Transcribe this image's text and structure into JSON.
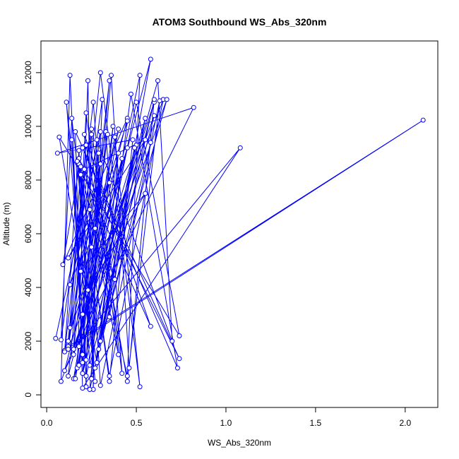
{
  "chart_data": {
    "type": "line-points",
    "title": "ATOM3 Southbound WS_Abs_320nm",
    "x_label": "WS_Abs_320nm",
    "y_label": "Altitude (m)",
    "color": "#0000ff",
    "x": [
      0.05,
      0.3,
      0.15,
      0.6,
      0.2,
      0.45,
      0.1,
      2.1,
      0.12,
      0.25,
      0.22,
      0.18,
      0.35,
      0.65,
      0.08,
      0.13,
      0.2,
      0.4,
      0.3,
      0.55,
      0.17,
      0.23,
      0.26,
      0.28,
      0.7,
      0.62,
      0.15,
      0.38,
      0.52,
      0.3,
      0.12,
      0.58,
      0.27,
      0.47,
      0.73,
      0.2,
      0.09,
      0.45,
      0.1,
      0.82,
      0.06,
      0.48,
      0.35,
      0.18,
      0.74,
      0.16,
      0.2,
      1.08,
      0.15,
      0.22,
      0.4,
      0.19,
      0.13,
      0.33,
      0.42,
      0.25,
      0.08,
      0.14,
      0.29,
      0.6,
      0.46,
      0.36,
      0.22,
      0.11,
      0.27,
      0.17,
      0.58,
      0.21,
      0.3,
      0.63,
      0.45,
      0.22,
      0.12,
      0.4,
      0.16,
      0.35,
      0.2,
      0.5,
      0.74,
      0.07,
      0.28,
      0.45,
      0.19,
      0.55,
      0.23,
      0.19,
      0.25,
      0.3,
      0.27,
      0.38,
      0.21,
      0.55,
      0.12,
      0.35,
      0.13,
      0.24,
      0.45,
      0.52,
      0.18,
      0.34,
      0.2,
      0.42,
      0.15,
      0.5,
      0.3,
      0.67,
      0.18,
      0.29,
      0.25,
      0.31,
      0.12,
      0.6,
      0.24,
      0.18,
      0.1,
      0.26,
      0.35,
      0.49,
      0.22,
      0.14,
      0.2,
      0.37,
      0.24,
      0.58
    ],
    "values": [
      2100,
      9800,
      1700,
      10900,
      800,
      9200,
      1650,
      10230,
      1800,
      9700,
      300,
      8600,
      700,
      11000,
      500,
      11900,
      1500,
      9000,
      2000,
      10300,
      1000,
      11700,
      200,
      9500,
      2000,
      11700,
      600,
      9600,
      300,
      12000,
      700,
      12500,
      1000,
      11200,
      1000,
      9200,
      4850,
      10300,
      900,
      10700,
      9000,
      9500,
      500,
      8800,
      1350,
      9800,
      250,
      9200,
      1700,
      10500,
      1500,
      8500,
      2500,
      9800,
      800,
      9900,
      2050,
      10300,
      1700,
      11000,
      1000,
      11900,
      1300,
      10900,
      500,
      8700,
      2550,
      9700,
      350,
      10950,
      500,
      9300,
      2000,
      9900,
      600,
      11700,
      800,
      10900,
      2200,
      9600,
      1200,
      10200,
      4600,
      7500,
      3900,
      8200,
      5500,
      8600,
      6200,
      4300,
      8400,
      9500,
      5100,
      7900,
      4100,
      6900,
      700,
      11900,
      1100,
      9700,
      3000,
      8800,
      1500,
      9300,
      2000,
      11000,
      1800,
      9000,
      600,
      11000,
      1700,
      10400,
      1100,
      9100,
      1600,
      10900,
      2900,
      9200,
      700,
      9500,
      1200,
      10000,
      200,
      9400
    ],
    "xlim": [
      -0.032,
      2.182
    ],
    "ylim": [
      -470,
      13180
    ],
    "xticks": [
      {
        "value": 0,
        "label": "0.0"
      },
      0.5,
      {
        "value": 1,
        "label": "1.0"
      },
      1.5,
      {
        "value": 2,
        "label": "2.0"
      }
    ],
    "yticks": [
      0,
      2000,
      4000,
      6000,
      8000,
      10000,
      12000
    ]
  }
}
